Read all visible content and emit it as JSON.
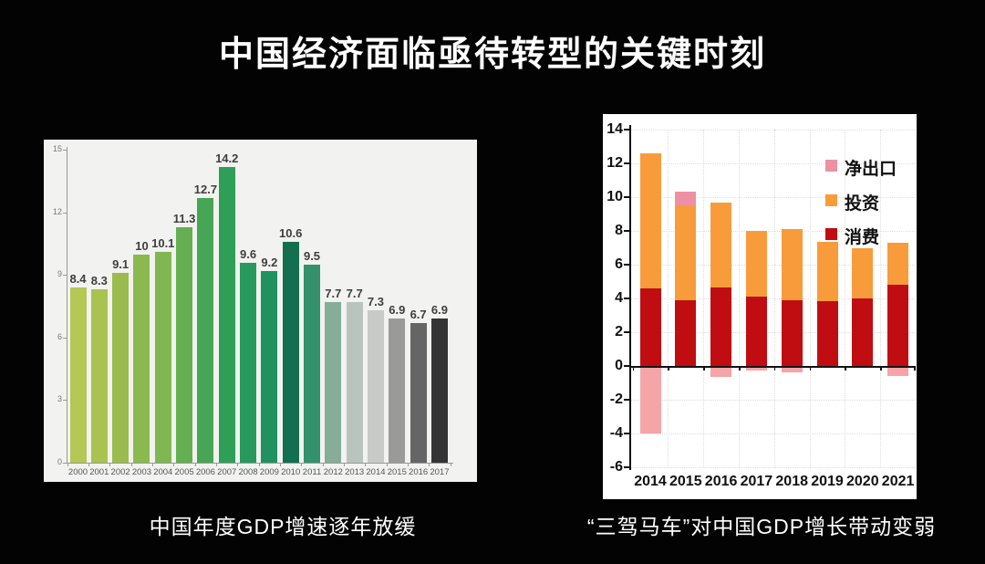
{
  "title": "中国经济面临亟待转型的关键时刻",
  "colors": {
    "slide_background": "#030303",
    "title_text": "#ffffff",
    "left_panel_bg": "#f2f2f0",
    "right_panel_bg": "#ffffff",
    "left_axis": "#999999",
    "left_tick_text": "#777777",
    "left_year_text": "#555555",
    "left_value_text": "#3e3e3e",
    "right_axis": "#111111",
    "right_grid": "#dddddd"
  },
  "chart_data": [
    {
      "id": "gdp-growth",
      "type": "bar",
      "caption": "中国年度GDP增速逐年放缓",
      "categories": [
        "2000",
        "2001",
        "2002",
        "2003",
        "2004",
        "2005",
        "2006",
        "2007",
        "2008",
        "2009",
        "2010",
        "2011",
        "2012",
        "2013",
        "2014",
        "2015",
        "2016",
        "2017"
      ],
      "values": [
        8.4,
        8.3,
        9.1,
        10,
        10.1,
        11.3,
        12.7,
        14.2,
        9.6,
        9.2,
        10.6,
        9.5,
        7.7,
        7.7,
        7.3,
        6.9,
        6.7,
        6.9
      ],
      "bar_colors": [
        "#b5c754",
        "#a9c250",
        "#9abc4e",
        "#8bb94f",
        "#80b752",
        "#65ae51",
        "#47a656",
        "#2f9f58",
        "#27995d",
        "#1f9260",
        "#136f50",
        "#33926b",
        "#87ac98",
        "#bac4be",
        "#c7cac7",
        "#9a9a9a",
        "#656565",
        "#343434"
      ],
      "ylim": [
        0,
        15
      ],
      "y_ticks": [
        15,
        12,
        9,
        6,
        3,
        0
      ],
      "grid": false,
      "legend_position": "none",
      "xlabel": "",
      "ylabel": ""
    },
    {
      "id": "troika-contribution",
      "type": "stacked-bar",
      "caption": "“三驾马车”对中国GDP增长带动变弱",
      "categories": [
        "2014",
        "2015",
        "2016",
        "2017",
        "2018",
        "2019",
        "2020",
        "2021"
      ],
      "series": [
        {
          "key": "net_exports",
          "name": "净出口",
          "color": "#ee90a4",
          "neg_color": "#f5a4a8",
          "values": [
            -3.9,
            0.8,
            -0.55,
            -0.2,
            -0.3,
            0,
            0,
            -0.5
          ]
        },
        {
          "key": "investment",
          "name": "投资",
          "color": "#f89c3b",
          "values": [
            8.0,
            5.6,
            5.0,
            3.9,
            4.2,
            3.5,
            3.0,
            2.5
          ]
        },
        {
          "key": "consumption",
          "name": "消费",
          "color": "#c00d12",
          "values": [
            4.6,
            3.9,
            4.65,
            4.1,
            3.9,
            3.85,
            4.0,
            4.8
          ]
        }
      ],
      "ylim": [
        -6,
        14
      ],
      "y_ticks": [
        14,
        12,
        10,
        8,
        6,
        4,
        2,
        0,
        -2,
        -4,
        -6
      ],
      "grid": true,
      "legend_position": "upper-right",
      "xlabel": "",
      "ylabel": ""
    }
  ]
}
